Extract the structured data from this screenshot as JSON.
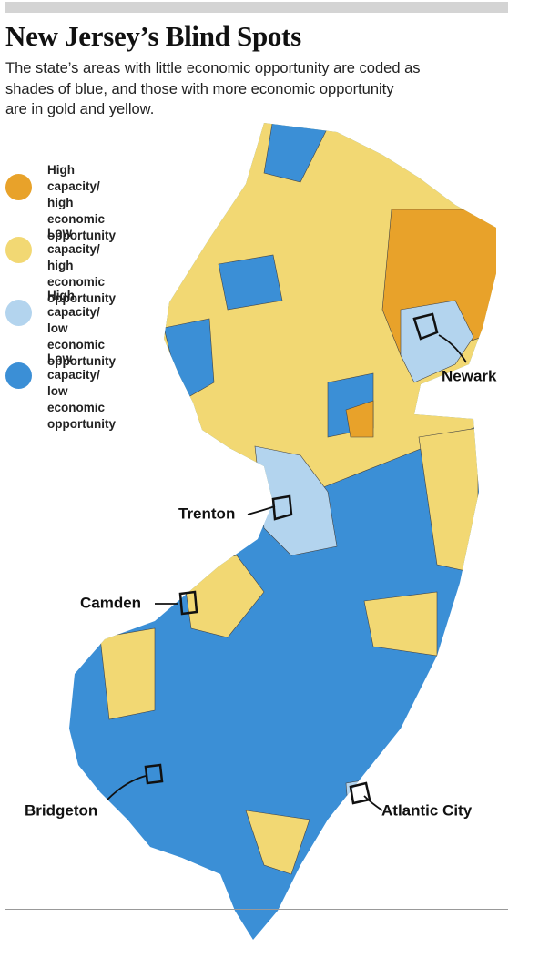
{
  "header": {
    "title": "New Jersey’s Blind Spots",
    "subtitle": [
      "The state’s areas with little economic opportunity are coded as",
      "shades of blue, and those with more economic opportunity",
      "are in gold and yellow."
    ]
  },
  "legend": [
    {
      "label": [
        "High capacity/",
        "high economic",
        "opportunity"
      ],
      "color": "#e8a22a"
    },
    {
      "label": [
        "Low capacity/",
        "high economic",
        "opportunity"
      ],
      "color": "#f2d873"
    },
    {
      "label": [
        "High capacity/",
        "low economic",
        "opportunity"
      ],
      "color": "#b3d4ee"
    },
    {
      "label": [
        "Low capacity/",
        "low economic",
        "opportunity"
      ],
      "color": "#3b8fd6"
    }
  ],
  "cities": [
    "Newark",
    "Trenton",
    "Camden",
    "Bridgeton",
    "Atlantic City"
  ]
}
